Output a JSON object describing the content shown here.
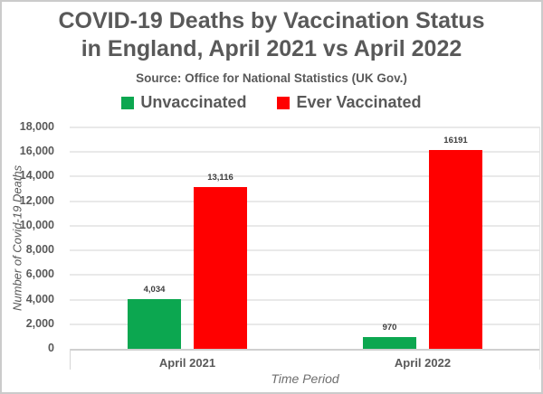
{
  "header": {
    "title_line1": "COVID-19 Deaths by Vaccination Status",
    "title_line2": "in England, April 2021 vs April 2022",
    "source": "Source: Office for National Statistics (UK Gov.)"
  },
  "legend": {
    "items": [
      {
        "label": "Unvaccinated",
        "color": "#0ca750"
      },
      {
        "label": "Ever Vaccinated",
        "color": "#ff0000"
      }
    ]
  },
  "chart_data": {
    "type": "bar",
    "title": "COVID-19 Deaths by Vaccination Status in England, April 2021 vs April 2022",
    "subtitle": "Source: Office for National Statistics (UK Gov.)",
    "categories": [
      "April 2021",
      "April 2022"
    ],
    "series": [
      {
        "name": "Unvaccinated",
        "color": "#0ca750",
        "values": [
          4034,
          970
        ],
        "data_labels": [
          "4,034",
          "970"
        ]
      },
      {
        "name": "Ever Vaccinated",
        "color": "#ff0000",
        "values": [
          13116,
          16191
        ],
        "data_labels": [
          "13,116",
          "16191"
        ]
      }
    ],
    "xlabel": "Time Period",
    "ylabel": "Number of Covid-19 Deaths",
    "ylim": [
      0,
      18000
    ],
    "ytick_step": 2000,
    "ytick_labels": [
      "0",
      "2,000",
      "4,000",
      "6,000",
      "8,000",
      "10,000",
      "12,000",
      "14,000",
      "16,000",
      "18,000"
    ],
    "grid": true,
    "legend_position": "top"
  },
  "colors": {
    "text_gray": "#595959",
    "gridline": "#e9e9e9",
    "axis_line": "#cfcfcf",
    "frame_border": "#cbcbcb",
    "data_label": "#3d3d3d",
    "background": "#ffffff"
  }
}
